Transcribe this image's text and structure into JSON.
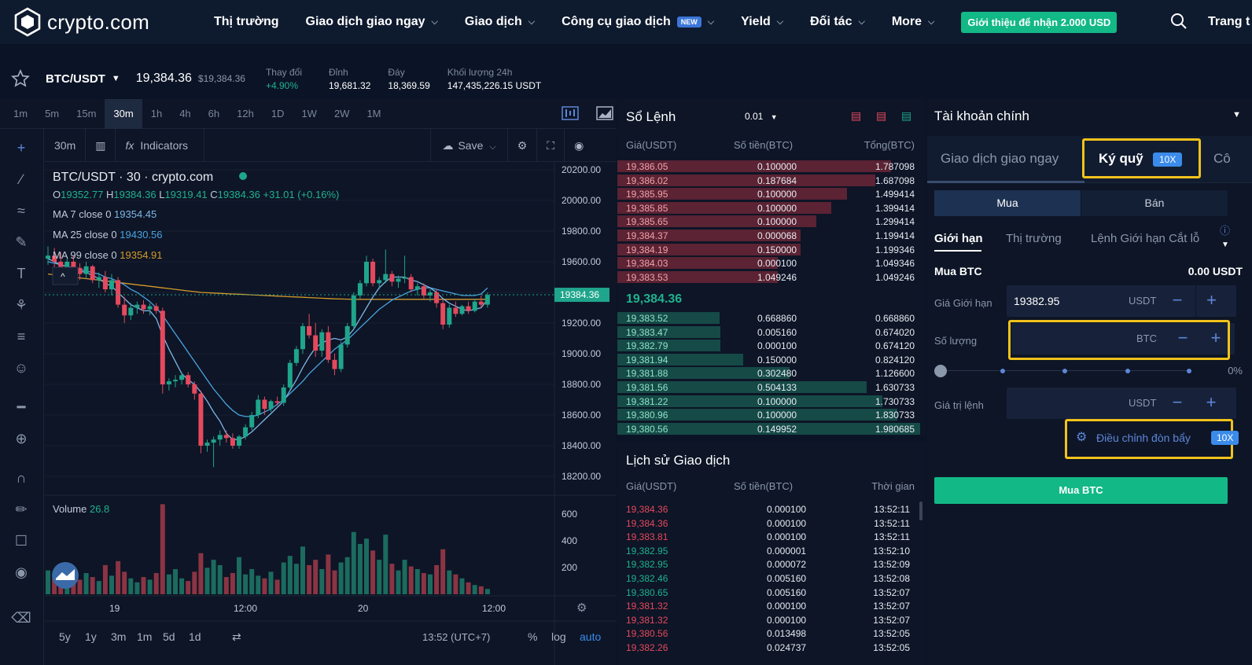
{
  "nav": {
    "brand": "crypto.com",
    "items": [
      "Thị trường",
      "Giao dịch giao ngay",
      "Giao dịch",
      "Công cụ giao dịch",
      "Yield",
      "Đối tác",
      "More"
    ],
    "new_tag": "NEW",
    "promo": "Giới thiệu để nhận 2.000 USD",
    "trang": "Trang t"
  },
  "ticker": {
    "pair": "BTC/USDT",
    "price": "19,384.36",
    "price_usd": "$19,384.36",
    "change_label": "Thay đổi",
    "change": "+4.90%",
    "high_label": "Đỉnh",
    "high": "19,681.32",
    "low_label": "Đáy",
    "low": "18,369.59",
    "vol_label": "Khối lượng 24h",
    "vol": "147,435,226.15 USDT"
  },
  "timeframes": [
    "1m",
    "5m",
    "15m",
    "30m",
    "1h",
    "4h",
    "6h",
    "12h",
    "1D",
    "1W",
    "2W",
    "1M"
  ],
  "chart": {
    "interval": "30m",
    "indicators": "Indicators",
    "save": "Save",
    "title": "BTC/USDT · 30 · crypto.com",
    "ohlc": {
      "o_label": "O",
      "o": "19352.77",
      "h_label": "H",
      "h": "19384.36",
      "l_label": "L",
      "l": "19319.41",
      "c_label": "C",
      "c": "19384.36",
      "chg": "+31.01 (+0.16%)"
    },
    "ma7_label": "MA 7 close 0",
    "ma7": "19354.45",
    "ma25_label": "MA 25 close 0",
    "ma25": "19430.56",
    "ma99_label": "MA 99 close 0",
    "ma99": "19354.91",
    "price_ticks": [
      "20200.00",
      "20000.00",
      "19800.00",
      "19600.00",
      "19400.00",
      "19200.00",
      "19000.00",
      "18800.00",
      "18600.00",
      "18400.00",
      "18200.00"
    ],
    "last_price": "19384.36",
    "volume_label": "Volume",
    "volume_value": "26.8",
    "vol_ticks": [
      "600",
      "400",
      "200"
    ],
    "time_ticks": [
      "19",
      "12:00",
      "20",
      "12:00"
    ],
    "ranges": [
      "5y",
      "1y",
      "3m",
      "1m",
      "5d",
      "1d"
    ],
    "clock": "13:52 (UTC+7)",
    "pct": "%",
    "log": "log",
    "auto": "auto"
  },
  "chart_data": {
    "type": "candlestick",
    "candles": [
      [
        19620,
        19700,
        19580,
        19640
      ],
      [
        19640,
        19690,
        19560,
        19600
      ],
      [
        19600,
        19660,
        19520,
        19560
      ],
      [
        19560,
        19620,
        19500,
        19600
      ],
      [
        19600,
        19640,
        19540,
        19560
      ],
      [
        19560,
        19590,
        19480,
        19520
      ],
      [
        19520,
        19600,
        19490,
        19570
      ],
      [
        19570,
        19580,
        19460,
        19480
      ],
      [
        19480,
        19530,
        19430,
        19500
      ],
      [
        19500,
        19540,
        19400,
        19420
      ],
      [
        19420,
        19520,
        19380,
        19480
      ],
      [
        19480,
        19500,
        19300,
        19320
      ],
      [
        19320,
        19370,
        19200,
        19250
      ],
      [
        19250,
        19330,
        19220,
        19300
      ],
      [
        19300,
        19340,
        19260,
        19320
      ],
      [
        19320,
        19350,
        19260,
        19290
      ],
      [
        19290,
        19330,
        19250,
        19310
      ],
      [
        19310,
        19330,
        19260,
        19280
      ],
      [
        19280,
        19300,
        18740,
        18800
      ],
      [
        18800,
        18840,
        18760,
        18820
      ],
      [
        18820,
        18860,
        18780,
        18830
      ],
      [
        18830,
        18880,
        18800,
        18860
      ],
      [
        18860,
        18880,
        18780,
        18800
      ],
      [
        18800,
        18820,
        18700,
        18740
      ],
      [
        18740,
        18760,
        18350,
        18400
      ],
      [
        18400,
        18440,
        18360,
        18420
      ],
      [
        18420,
        18460,
        18260,
        18440
      ],
      [
        18440,
        18500,
        18400,
        18470
      ],
      [
        18470,
        18500,
        18420,
        18450
      ],
      [
        18450,
        18480,
        18380,
        18400
      ],
      [
        18400,
        18470,
        18380,
        18460
      ],
      [
        18460,
        18540,
        18440,
        18520
      ],
      [
        18520,
        18620,
        18500,
        18600
      ],
      [
        18600,
        18730,
        18580,
        18700
      ],
      [
        18700,
        18720,
        18600,
        18640
      ],
      [
        18640,
        18700,
        18620,
        18690
      ],
      [
        18690,
        18720,
        18660,
        18680
      ],
      [
        18680,
        18800,
        18660,
        18780
      ],
      [
        18780,
        18960,
        18760,
        18940
      ],
      [
        18940,
        19050,
        18920,
        19030
      ],
      [
        19030,
        19200,
        19000,
        19180
      ],
      [
        19180,
        19260,
        19100,
        19120
      ],
      [
        19120,
        19200,
        18980,
        19020
      ],
      [
        19020,
        19160,
        18980,
        19140
      ],
      [
        19140,
        19180,
        18940,
        18960
      ],
      [
        18960,
        19000,
        18860,
        18900
      ],
      [
        18900,
        19080,
        18880,
        19060
      ],
      [
        19060,
        19200,
        19040,
        19180
      ],
      [
        19180,
        19400,
        19160,
        19380
      ],
      [
        19380,
        19480,
        19360,
        19460
      ],
      [
        19460,
        19640,
        19440,
        19600
      ],
      [
        19600,
        19620,
        19440,
        19460
      ],
      [
        19460,
        19500,
        19420,
        19480
      ],
      [
        19480,
        19680,
        19460,
        19520
      ],
      [
        19520,
        19540,
        19440,
        19470
      ],
      [
        19470,
        19510,
        19430,
        19490
      ],
      [
        19490,
        19640,
        19460,
        19500
      ],
      [
        19500,
        19520,
        19400,
        19420
      ],
      [
        19420,
        19460,
        19380,
        19440
      ],
      [
        19440,
        19460,
        19360,
        19380
      ],
      [
        19380,
        19420,
        19340,
        19400
      ],
      [
        19400,
        19420,
        19300,
        19330
      ],
      [
        19330,
        19350,
        19160,
        19190
      ],
      [
        19190,
        19320,
        19170,
        19300
      ],
      [
        19300,
        19340,
        19240,
        19260
      ],
      [
        19260,
        19320,
        19250,
        19310
      ],
      [
        19310,
        19340,
        19260,
        19280
      ],
      [
        19280,
        19360,
        19270,
        19340
      ],
      [
        19340,
        19380,
        19300,
        19320
      ],
      [
        19320,
        19400,
        19300,
        19384
      ]
    ],
    "volume": [
      180,
      120,
      150,
      90,
      200,
      110,
      160,
      130,
      100,
      220,
      140,
      250,
      170,
      120,
      90,
      130,
      110,
      160,
      680,
      150,
      190,
      120,
      100,
      170,
      310,
      200,
      260,
      220,
      130,
      160,
      280,
      150,
      190,
      140,
      120,
      170,
      110,
      240,
      290,
      230,
      360,
      220,
      260,
      190,
      300,
      180,
      240,
      280,
      470,
      380,
      420,
      330,
      260,
      450,
      230,
      180,
      260,
      210,
      190,
      160,
      150,
      220,
      340,
      180,
      150,
      120,
      90,
      70,
      60,
      40
    ],
    "ma7": [
      19620,
      19600,
      19580,
      19570,
      19560,
      19540,
      19530,
      19510,
      19490,
      19460,
      19440,
      19400,
      19360,
      19320,
      19300,
      19280,
      19280,
      19230,
      19120,
      19030,
      18950,
      18870,
      18830,
      18800,
      18750,
      18690,
      18620,
      18560,
      18480,
      18440,
      18440,
      18460,
      18490,
      18530,
      18570,
      18610,
      18650,
      18690,
      18760,
      18830,
      18910,
      18980,
      19040,
      19070,
      19090,
      19100,
      19090,
      19110,
      19160,
      19230,
      19300,
      19370,
      19430,
      19470,
      19500,
      19500,
      19500,
      19480,
      19470,
      19450,
      19430,
      19400,
      19360,
      19330,
      19310,
      19290,
      19280,
      19290,
      19300,
      19354
    ],
    "ma25": [
      19600,
      19590,
      19580,
      19570,
      19560,
      19550,
      19540,
      19530,
      19520,
      19500,
      19490,
      19470,
      19450,
      19420,
      19400,
      19370,
      19340,
      19300,
      19250,
      19190,
      19130,
      19070,
      19010,
      18950,
      18890,
      18830,
      18770,
      18720,
      18670,
      18630,
      18600,
      18590,
      18590,
      18600,
      18620,
      18640,
      18670,
      18700,
      18740,
      18780,
      18820,
      18870,
      18910,
      18950,
      18990,
      19030,
      19060,
      19090,
      19130,
      19170,
      19210,
      19250,
      19290,
      19320,
      19350,
      19370,
      19390,
      19410,
      19420,
      19430,
      19430,
      19420,
      19410,
      19400,
      19390,
      19380,
      19380,
      19380,
      19390,
      19430
    ],
    "ma99": [
      19520,
      19515,
      19510,
      19505,
      19500,
      19495,
      19490,
      19485,
      19480,
      19475,
      19470,
      19465,
      19460,
      19455,
      19450,
      19445,
      19440,
      19435,
      19430,
      19425,
      19420,
      19415,
      19410,
      19405,
      19400,
      19398,
      19396,
      19394,
      19392,
      19390,
      19388,
      19386,
      19384,
      19382,
      19380,
      19378,
      19376,
      19374,
      19372,
      19370,
      19368,
      19366,
      19364,
      19362,
      19360,
      19358,
      19357,
      19356,
      19355,
      19355,
      19355,
      19355,
      19355,
      19355,
      19355,
      19355,
      19355,
      19355,
      19355,
      19355,
      19355,
      19355,
      19355,
      19355,
      19355,
      19355,
      19355,
      19355,
      19355,
      19355
    ],
    "ylim": [
      18100,
      20300
    ]
  },
  "orderbook": {
    "title": "Sổ Lệnh",
    "step": "0.01",
    "cols": [
      "Giá(USDT)",
      "Số tiền(BTC)",
      "Tổng(BTC)"
    ],
    "asks": [
      [
        "19,386.05",
        "0.100000",
        "1.787098"
      ],
      [
        "19,386.02",
        "0.187684",
        "1.687098"
      ],
      [
        "19,385.95",
        "0.100000",
        "1.499414"
      ],
      [
        "19,385.85",
        "0.100000",
        "1.399414"
      ],
      [
        "19,385.65",
        "0.100000",
        "1.299414"
      ],
      [
        "19,384.37",
        "0.000068",
        "1.199414"
      ],
      [
        "19,384.19",
        "0.150000",
        "1.199346"
      ],
      [
        "19,384.03",
        "0.000100",
        "1.049346"
      ],
      [
        "19,383.53",
        "1.049246",
        "1.049246"
      ]
    ],
    "ask_depth": [
      1.787098,
      1.687098,
      1.499414,
      1.399414,
      1.299414,
      1.199414,
      1.199346,
      1.049346,
      1.049246
    ],
    "mid": "19,384.36",
    "bids": [
      [
        "19,383.52",
        "0.668860",
        "0.668860"
      ],
      [
        "19,383.47",
        "0.005160",
        "0.674020"
      ],
      [
        "19,382.79",
        "0.000100",
        "0.674120"
      ],
      [
        "19,381.94",
        "0.150000",
        "0.824120"
      ],
      [
        "19,381.88",
        "0.302480",
        "1.126600"
      ],
      [
        "19,381.56",
        "0.504133",
        "1.630733"
      ],
      [
        "19,381.22",
        "0.100000",
        "1.730733"
      ],
      [
        "19,380.96",
        "0.100000",
        "1.830733"
      ],
      [
        "19,380.56",
        "0.149952",
        "1.980685"
      ]
    ],
    "bid_depth": [
      0.66886,
      0.67402,
      0.67412,
      0.82412,
      1.1266,
      1.630733,
      1.730733,
      1.830733,
      1.980685
    ]
  },
  "history": {
    "title": "Lịch sử Giao dịch",
    "cols": [
      "Giá(USDT)",
      "Số tiền(BTC)",
      "Thời gian"
    ],
    "rows": [
      [
        "19,384.36",
        "0.000100",
        "13:52:11",
        "sell"
      ],
      [
        "19,384.36",
        "0.000100",
        "13:52:11",
        "sell"
      ],
      [
        "19,383.81",
        "0.000100",
        "13:52:11",
        "sell"
      ],
      [
        "19,382.95",
        "0.000001",
        "13:52:10",
        "buy"
      ],
      [
        "19,382.95",
        "0.000072",
        "13:52:09",
        "buy"
      ],
      [
        "19,382.46",
        "0.005160",
        "13:52:08",
        "buy"
      ],
      [
        "19,380.65",
        "0.005160",
        "13:52:07",
        "buy"
      ],
      [
        "19,381.32",
        "0.000100",
        "13:52:07",
        "sell"
      ],
      [
        "19,381.32",
        "0.000100",
        "13:52:07",
        "sell"
      ],
      [
        "19,380.56",
        "0.013498",
        "13:52:05",
        "sell"
      ],
      [
        "19,382.26",
        "0.024737",
        "13:52:05",
        "sell"
      ]
    ]
  },
  "trade": {
    "account": "Tài khoản chính",
    "tab_spot": "Giao dịch giao ngay",
    "tab_margin": "Ký quỹ",
    "tab_badge": "10X",
    "tab_more": "Cô",
    "buy": "Mua",
    "sell": "Bán",
    "ot_limit": "Giới hạn",
    "ot_market": "Thị trường",
    "ot_stop": "Lệnh Giới hạn Cắt lỗ",
    "buy_btc": "Mua BTC",
    "balance": "0.00 USDT",
    "limit_label": "Giá Giới hạn",
    "limit_value": "19382.95",
    "limit_unit": "USDT",
    "qty_label": "Số lượng",
    "qty_unit": "BTC",
    "pct": "0%",
    "value_label": "Giá trị lệnh",
    "value_unit": "USDT",
    "leverage": "Điều chỉnh đòn bẩy",
    "leverage_badge": "10X",
    "submit": "Mua BTC"
  },
  "colors": {
    "up": "#1fa58b",
    "down": "#e5495d",
    "highlight": "#f2c21b",
    "accent": "#12b886"
  }
}
